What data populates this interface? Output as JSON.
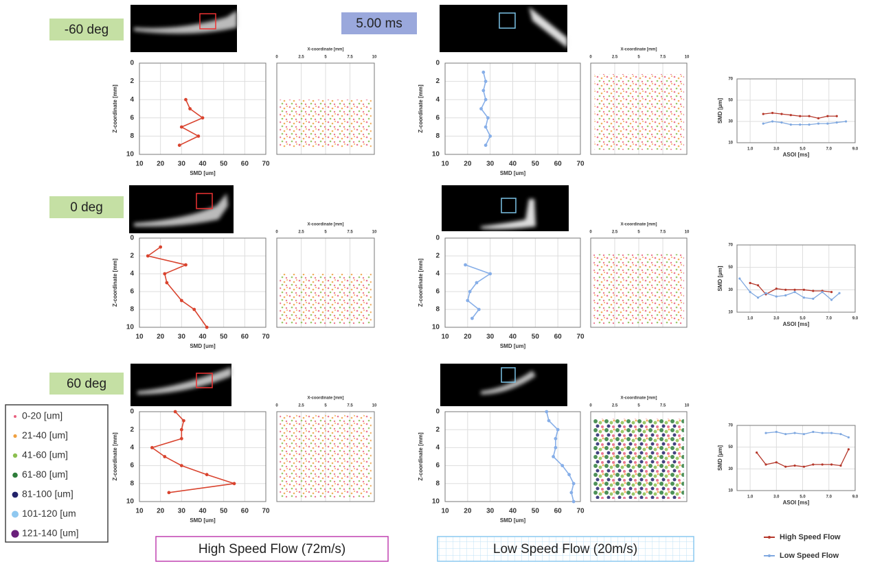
{
  "header": {
    "time": "5.00 ms"
  },
  "angles": [
    "-60 deg",
    "0 deg",
    "60 deg"
  ],
  "size_legend": [
    {
      "label": "0-20 [um]",
      "color": "#e8607f"
    },
    {
      "label": "21-40 [um]",
      "color": "#f0a040"
    },
    {
      "label": "41-60 [um]",
      "color": "#8cbf50"
    },
    {
      "label": "61-80 [um]",
      "color": "#2e7d3a"
    },
    {
      "label": "81-100 [um]",
      "color": "#22226a"
    },
    {
      "label": "101-120 [um",
      "color": "#8fc8f0"
    },
    {
      "label": "121-140 [um]",
      "color": "#6a1f7a"
    }
  ],
  "footer": {
    "high": "High Speed Flow (72m/s)",
    "low": "Low Speed Flow (20m/s)"
  },
  "flow_legend": [
    {
      "name": "High Speed Flow",
      "color": "#b5372a"
    },
    {
      "name": "Low Speed Flow",
      "color": "#7fa8e0"
    }
  ],
  "chart_data": [
    {
      "type": "line",
      "x": [
        32,
        34,
        40,
        30,
        38,
        29
      ],
      "values": [
        4,
        5,
        6,
        7,
        8,
        9
      ],
      "color": "#d9432e",
      "xlabel": "SMD [um]",
      "ylabel": "Z-coordinate [mm]",
      "xlim": [
        10,
        70
      ],
      "xticks": [
        10,
        20,
        30,
        40,
        50,
        60,
        70
      ],
      "ylim": [
        0,
        10
      ],
      "yticks": [
        0,
        2,
        4,
        6,
        8,
        10
      ],
      "y_reversed": true,
      "grid": true
    },
    {
      "type": "scatter",
      "xlabel": "X-coordinate [mm]",
      "xlim": [
        0,
        10
      ],
      "xticks": [
        0,
        2.5,
        5,
        7.5,
        10
      ],
      "grid": true
    },
    {
      "type": "line",
      "x": [
        27,
        28,
        27,
        28,
        26,
        29,
        28,
        30,
        28
      ],
      "values": [
        1,
        2,
        3,
        4,
        5,
        6,
        7,
        8,
        9
      ],
      "color": "#86aee8",
      "xlabel": "SMD [um]",
      "ylabel": "Z-coordinate [mm]",
      "xlim": [
        10,
        70
      ],
      "xticks": [
        10,
        20,
        30,
        40,
        50,
        60,
        70
      ],
      "ylim": [
        0,
        10
      ],
      "yticks": [
        0,
        2,
        4,
        6,
        8,
        10
      ],
      "y_reversed": true,
      "grid": true
    },
    {
      "type": "scatter",
      "xlabel": "X-coordinate [mm]",
      "xlim": [
        0,
        10
      ],
      "xticks": [
        0,
        2.5,
        5,
        7.5,
        10
      ],
      "grid": true
    },
    {
      "type": "line",
      "x": [
        2.0,
        2.7,
        3.4,
        4.1,
        4.8,
        5.5,
        6.2,
        6.9,
        7.6,
        8.3
      ],
      "xlabel": "ASOI [ms]",
      "ylabel": "SMD [µm]",
      "xlim": [
        0,
        9
      ],
      "xticks": [
        {
          "value": 1,
          "label": "1.0"
        },
        {
          "value": 3,
          "label": "3.0"
        },
        {
          "value": 5,
          "label": "5.0"
        },
        {
          "value": 7,
          "label": "7.0"
        },
        {
          "value": 9,
          "label": "9.0"
        }
      ],
      "ylim": [
        10,
        70
      ],
      "yticks": [
        10,
        30,
        50,
        70
      ],
      "grid": true,
      "series": [
        {
          "color": "#b5372a",
          "values": [
            37,
            38,
            37,
            36,
            35,
            35,
            33,
            35,
            35,
            null
          ]
        },
        {
          "color": "#7fa8e0",
          "values": [
            28,
            30,
            29,
            27,
            27,
            27,
            28,
            28,
            29,
            30
          ]
        }
      ]
    },
    {
      "type": "line",
      "x": [
        20,
        14,
        32,
        22,
        23,
        30,
        36,
        42
      ],
      "values": [
        1,
        2,
        3,
        4,
        5,
        7,
        8,
        10
      ],
      "color": "#d9432e",
      "xlabel": "SMD [um]",
      "ylabel": "Z-coordinate [mm]",
      "xlim": [
        10,
        70
      ],
      "xticks": [
        10,
        20,
        30,
        40,
        50,
        60,
        70
      ],
      "ylim": [
        0,
        10
      ],
      "yticks": [
        0,
        2,
        4,
        6,
        8,
        10
      ],
      "y_reversed": true,
      "grid": true
    },
    {
      "type": "scatter",
      "xlabel": "X-coordinate [mm]",
      "xlim": [
        0,
        10
      ],
      "xticks": [
        0,
        2.5,
        5,
        7.5,
        10
      ],
      "grid": true
    },
    {
      "type": "line",
      "x": [
        19,
        30,
        24,
        21,
        20,
        25,
        22
      ],
      "values": [
        3,
        4,
        5,
        6,
        7,
        8,
        9
      ],
      "color": "#86aee8",
      "xlabel": "SMD [um]",
      "ylabel": "Z-coordinate [mm]",
      "xlim": [
        10,
        70
      ],
      "xticks": [
        10,
        20,
        30,
        40,
        50,
        60,
        70
      ],
      "ylim": [
        0,
        10
      ],
      "yticks": [
        0,
        2,
        4,
        6,
        8,
        10
      ],
      "y_reversed": true,
      "grid": true
    },
    {
      "type": "scatter",
      "xlabel": "X-coordinate [mm]",
      "xlim": [
        0,
        10
      ],
      "xticks": [
        0,
        2.5,
        5,
        7.5,
        10
      ],
      "grid": true
    },
    {
      "type": "line",
      "x": [
        0.2,
        1.0,
        1.6,
        2.2,
        3.0,
        3.7,
        4.4,
        5.1,
        5.8,
        6.5,
        7.2,
        7.8
      ],
      "xlabel": "ASOI [ms]",
      "ylabel": "SMD [µm]",
      "xlim": [
        0,
        9
      ],
      "xticks": [
        {
          "value": 1,
          "label": "1.0"
        },
        {
          "value": 3,
          "label": "3.0"
        },
        {
          "value": 5,
          "label": "5.0"
        },
        {
          "value": 7,
          "label": "7.0"
        },
        {
          "value": 9,
          "label": "9.0"
        }
      ],
      "ylim": [
        10,
        70
      ],
      "yticks": [
        10,
        30,
        50,
        70
      ],
      "grid": true,
      "series": [
        {
          "color": "#b5372a",
          "values": [
            null,
            36,
            34,
            26,
            31,
            30,
            30,
            30,
            29,
            29,
            28,
            null
          ]
        },
        {
          "color": "#7fa8e0",
          "values": [
            40,
            28,
            23,
            27,
            24,
            25,
            28,
            23,
            22,
            28,
            21,
            27
          ]
        }
      ]
    },
    {
      "type": "line",
      "x": [
        27,
        31,
        30,
        30,
        16,
        22,
        30,
        42,
        55,
        24
      ],
      "values": [
        0,
        1,
        2,
        3,
        4,
        5,
        6,
        7,
        8,
        9
      ],
      "color": "#d9432e",
      "xlabel": "SMD [um]",
      "ylabel": "Z-coordinate [mm]",
      "xlim": [
        10,
        70
      ],
      "xticks": [
        10,
        20,
        30,
        40,
        50,
        60,
        70
      ],
      "ylim": [
        0,
        10
      ],
      "yticks": [
        0,
        2,
        4,
        6,
        8,
        10
      ],
      "y_reversed": true,
      "grid": true
    },
    {
      "type": "scatter",
      "xlabel": "X-coordinate [mm]",
      "xlim": [
        0,
        10
      ],
      "xticks": [
        0,
        2.5,
        5,
        7.5,
        10
      ],
      "grid": true
    },
    {
      "type": "line",
      "x": [
        55,
        56,
        60,
        59,
        59,
        58,
        62,
        65,
        67,
        66,
        67
      ],
      "values": [
        0,
        1,
        2,
        3,
        4,
        5,
        6,
        7,
        8,
        9,
        10
      ],
      "color": "#86aee8",
      "xlabel": "SMD [um]",
      "ylabel": "Z-coordinate [mm]",
      "xlim": [
        10,
        70
      ],
      "xticks": [
        10,
        20,
        30,
        40,
        50,
        60,
        70
      ],
      "ylim": [
        0,
        10
      ],
      "yticks": [
        0,
        2,
        4,
        6,
        8,
        10
      ],
      "y_reversed": true,
      "grid": true
    },
    {
      "type": "scatter",
      "xlabel": "X-coordinate [mm]",
      "xlim": [
        0,
        10
      ],
      "xticks": [
        0,
        2.5,
        5,
        7.5,
        10
      ],
      "grid": true
    },
    {
      "type": "line",
      "x": [
        1.5,
        2.2,
        3.0,
        3.7,
        4.4,
        5.1,
        5.8,
        6.5,
        7.2,
        7.9,
        8.5
      ],
      "xlabel": "ASOI [ms]",
      "ylabel": "SMD [µm]",
      "xlim": [
        0,
        9
      ],
      "xticks": [
        {
          "value": 1,
          "label": "1.0"
        },
        {
          "value": 3,
          "label": "3.0"
        },
        {
          "value": 5,
          "label": "5.0"
        },
        {
          "value": 7,
          "label": "7.0"
        },
        {
          "value": 9,
          "label": "9.0"
        }
      ],
      "ylim": [
        10,
        70
      ],
      "yticks": [
        10,
        30,
        50,
        70
      ],
      "grid": true,
      "series": [
        {
          "color": "#b5372a",
          "values": [
            45,
            34,
            36,
            32,
            33,
            32,
            34,
            34,
            34,
            33,
            48
          ]
        },
        {
          "color": "#7fa8e0",
          "values": [
            null,
            63,
            64,
            62,
            63,
            62,
            64,
            63,
            63,
            62,
            59
          ]
        }
      ]
    }
  ]
}
